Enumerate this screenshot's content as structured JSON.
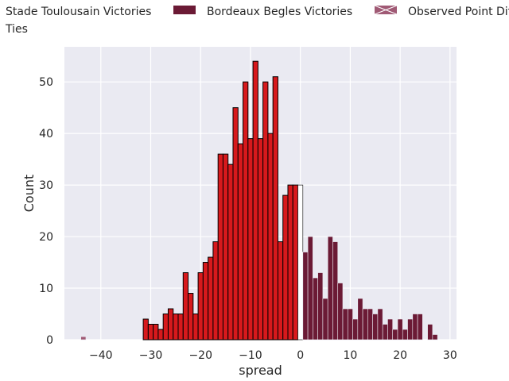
{
  "chart_data": {
    "type": "bar",
    "xlabel": "spread",
    "ylabel": "Count",
    "xlim": [
      -47.3,
      31.3
    ],
    "ylim": [
      0,
      56.8
    ],
    "xticks": [
      -40,
      -30,
      -20,
      -10,
      0,
      10,
      20,
      30
    ],
    "yticks": [
      0,
      10,
      20,
      30,
      40,
      50
    ],
    "grid": true,
    "legend_position": "top, outside plot area",
    "colors": {
      "toulouse": "#d7191c",
      "bordeaux": "#6b1a35",
      "ties": "#ffffff",
      "observed": "#a05a75",
      "background": "#eaeaf2",
      "grid": "#ffffff",
      "edge": "#000000"
    },
    "legend": [
      {
        "label": "Stade Toulousain Victories",
        "key": "toulouse"
      },
      {
        "label": "Bordeaux Begles Victories",
        "key": "bordeaux"
      },
      {
        "label": "Observed Point Dif",
        "key": "observed"
      },
      {
        "label": "Ties",
        "key": "ties"
      }
    ],
    "series": [
      {
        "name": "Stade Toulousain Victories",
        "key": "toulouse",
        "bin_width": 1,
        "x": [
          -31,
          -30,
          -29,
          -28,
          -27,
          -26,
          -25,
          -24,
          -23,
          -22,
          -21,
          -20,
          -19,
          -18,
          -17,
          -16,
          -15,
          -14,
          -13,
          -12,
          -11,
          -10,
          -9,
          -8,
          -7,
          -6,
          -5,
          -4,
          -3,
          -2,
          -1
        ],
        "values": [
          4,
          3,
          3,
          2,
          5,
          6,
          5,
          5,
          13,
          9,
          5,
          13,
          15,
          16,
          19,
          36,
          36,
          34,
          45,
          38,
          50,
          39,
          54,
          39,
          50,
          40,
          51,
          19,
          28,
          30,
          30
        ]
      },
      {
        "name": "Ties",
        "key": "ties",
        "bin_width": 1,
        "x": [
          0
        ],
        "values": [
          30
        ]
      },
      {
        "name": "Bordeaux Begles Victories",
        "key": "bordeaux",
        "bin_width": 1,
        "x": [
          1,
          2,
          3,
          4,
          5,
          6,
          7,
          8,
          9,
          10,
          11,
          12,
          13,
          14,
          15,
          16,
          17,
          18,
          19,
          20,
          21,
          22,
          23,
          24,
          25,
          26,
          27,
          28
        ],
        "values": [
          17,
          20,
          12,
          13,
          8,
          20,
          19,
          11,
          6,
          6,
          4,
          8,
          6,
          6,
          5,
          6,
          3,
          4,
          2,
          4,
          2,
          4,
          5,
          5,
          0,
          3,
          1,
          0
        ]
      },
      {
        "name": "Observed Point Dif",
        "key": "observed",
        "bin_width": 1,
        "x": [
          -43.5
        ],
        "values": [
          0.6
        ]
      }
    ]
  }
}
